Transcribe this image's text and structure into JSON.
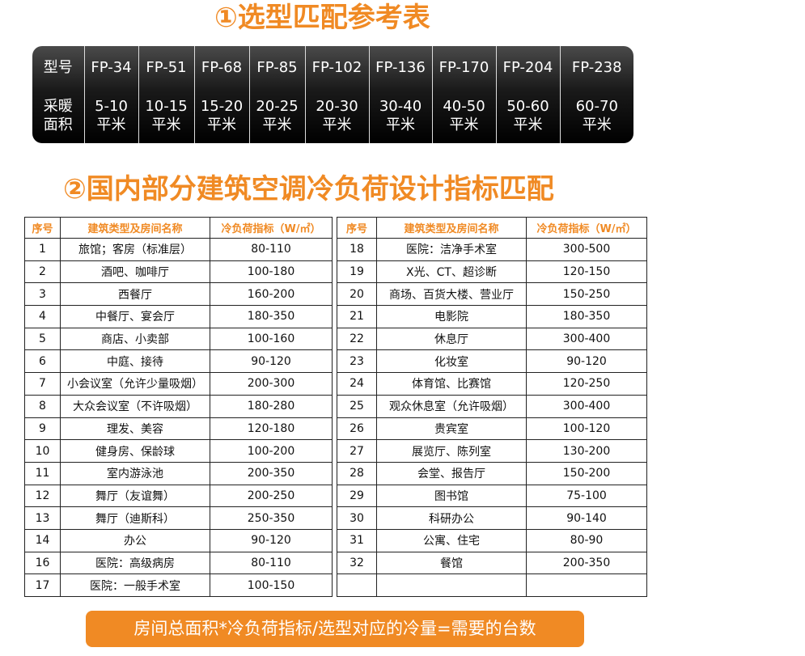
{
  "title1": "①选型匹配参考表",
  "table1": {
    "header": [
      "型号",
      "FP-34",
      "FP-51",
      "FP-68",
      "FP-85",
      "FP-102",
      "FP-136",
      "FP-170",
      "FP-204",
      "FP-238"
    ],
    "area_label": [
      "采暖",
      "面积"
    ],
    "area": [
      [
        "5-10",
        "平米"
      ],
      [
        "10-15",
        "平米"
      ],
      [
        "15-20",
        "平米"
      ],
      [
        "20-25",
        "平米"
      ],
      [
        "20-30",
        "平米"
      ],
      [
        "30-40",
        "平米"
      ],
      [
        "40-50",
        "平米"
      ],
      [
        "50-60",
        "平米"
      ],
      [
        "60-70",
        "平米"
      ]
    ]
  },
  "title2": "②国内部分建筑空调冷负荷设计指标匹配",
  "table2": {
    "left": {
      "header": [
        "序号",
        "建筑类型及房间名称",
        "冷负荷指标（W/㎡）"
      ],
      "rows": [
        [
          "1",
          "旅馆；客房（标准层）",
          "80-110"
        ],
        [
          "2",
          "酒吧、咖啡厅",
          "100-180"
        ],
        [
          "3",
          "西餐厅",
          "160-200"
        ],
        [
          "4",
          "中餐厅、宴会厅",
          "180-350"
        ],
        [
          "5",
          "商店、小卖部",
          "100-160"
        ],
        [
          "6",
          "中庭、接待",
          "90-120"
        ],
        [
          "7",
          "小会议室（允许少量吸烟）",
          "200-300"
        ],
        [
          "8",
          "大众会议室（不许吸烟）",
          "180-280"
        ],
        [
          "9",
          "理发、美容",
          "120-180"
        ],
        [
          "10",
          "健身房、保龄球",
          "100-200"
        ],
        [
          "11",
          "室内游泳池",
          "200-350"
        ],
        [
          "12",
          "舞厅（友谊舞）",
          "200-250"
        ],
        [
          "13",
          "舞厅（迪斯科）",
          "250-350"
        ],
        [
          "14",
          "办公",
          "90-120"
        ],
        [
          "16",
          "医院：高级病房",
          "80-110"
        ],
        [
          "17",
          "医院：一般手术室",
          "100-150"
        ]
      ]
    },
    "right": {
      "header": [
        "序号",
        "建筑类型及房间名称",
        "冷负荷指标（W/㎡）"
      ],
      "rows": [
        [
          "18",
          "医院：洁净手术室",
          "300-500"
        ],
        [
          "19",
          "X光、CT、超诊断",
          "120-150"
        ],
        [
          "20",
          "商场、百货大楼、营业厅",
          "150-250"
        ],
        [
          "21",
          "电影院",
          "180-350"
        ],
        [
          "22",
          "休息厅",
          "300-400"
        ],
        [
          "23",
          "化妆室",
          "90-120"
        ],
        [
          "24",
          "体育馆、比赛馆",
          "120-250"
        ],
        [
          "25",
          "观众休息室（允许吸烟）",
          "300-400"
        ],
        [
          "26",
          "贵宾室",
          "100-120"
        ],
        [
          "27",
          "展览厅、陈列室",
          "130-200"
        ],
        [
          "28",
          "会堂、报告厅",
          "150-200"
        ],
        [
          "29",
          "图书馆",
          "75-100"
        ],
        [
          "30",
          "科研办公",
          "90-140"
        ],
        [
          "31",
          "公寓、住宅",
          "80-90"
        ],
        [
          "32",
          "餐馆",
          "200-350"
        ]
      ]
    }
  },
  "footer": "房间总面积*冷负荷指标/选型对应的冷量=需要的台数"
}
